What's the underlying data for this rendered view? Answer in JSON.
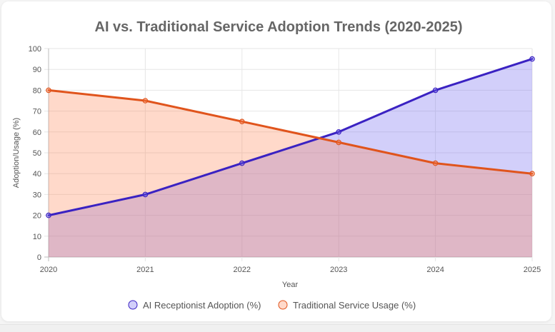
{
  "chart_data": {
    "type": "line",
    "title": "AI vs. Traditional Service Adoption Trends (2020-2025)",
    "xlabel": "Year",
    "ylabel": "Adoption/Usage (%)",
    "categories": [
      "2020",
      "2021",
      "2022",
      "2023",
      "2024",
      "2025"
    ],
    "ylim": [
      0,
      100
    ],
    "yticks": [
      0,
      10,
      20,
      30,
      40,
      50,
      60,
      70,
      80,
      90,
      100
    ],
    "grid": true,
    "legend_position": "bottom",
    "series": [
      {
        "name": "AI Receptionist Adoption (%)",
        "values": [
          20,
          30,
          45,
          60,
          80,
          95
        ],
        "color": "#3a22c2",
        "fill": "rgba(115,105,240,0.32)"
      },
      {
        "name": "Traditional Service Usage (%)",
        "values": [
          80,
          75,
          65,
          55,
          45,
          40
        ],
        "color": "#e0541c",
        "fill": "rgba(255,130,80,0.30)"
      }
    ]
  }
}
